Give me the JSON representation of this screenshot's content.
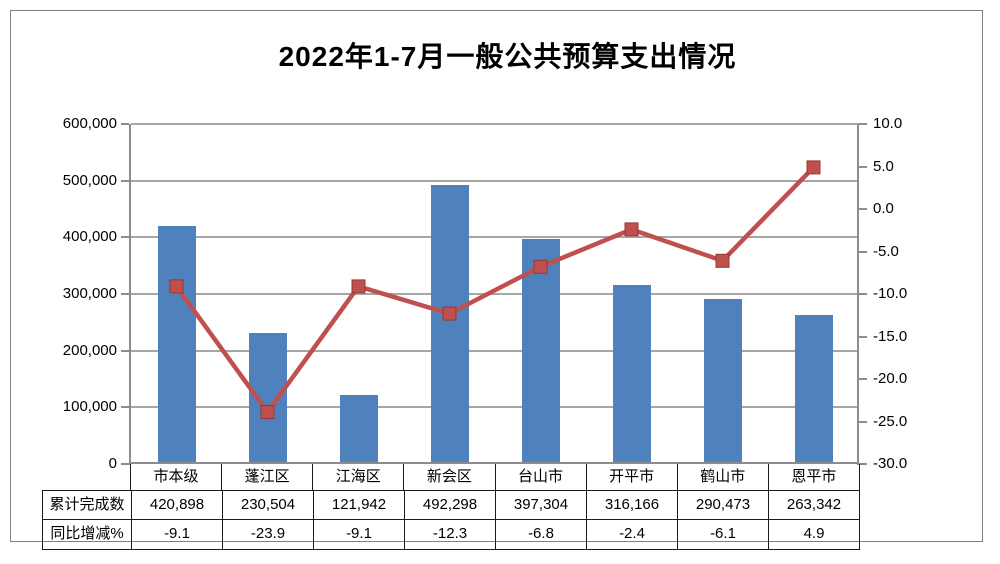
{
  "chart_data": {
    "type": "bar",
    "subtype": "bar-line-combo",
    "title": "2022年1-7月一般公共预算支出情况",
    "categories": [
      "市本级",
      "蓬江区",
      "江海区",
      "新会区",
      "台山市",
      "开平市",
      "鹤山市",
      "恩平市"
    ],
    "series": [
      {
        "name": "累计完成数",
        "type": "bar",
        "axis": "left",
        "values": [
          420898,
          230504,
          121942,
          492298,
          397304,
          316166,
          290473,
          263342
        ]
      },
      {
        "name": "同比增减%",
        "type": "line",
        "axis": "right",
        "values": [
          -9.1,
          -23.9,
          -9.1,
          -12.3,
          -6.8,
          -2.4,
          -6.1,
          4.9
        ]
      }
    ],
    "left_axis": {
      "min": 0,
      "max": 600000,
      "tick_labels": [
        "600,000",
        "500,000",
        "400,000",
        "300,000",
        "200,000",
        "100,000",
        "0"
      ]
    },
    "right_axis": {
      "min": -30,
      "max": 10,
      "tick_labels": [
        "10.0",
        "5.0",
        "0.0",
        "-5.0",
        "-10.0",
        "-15.0",
        "-20.0",
        "-25.0",
        "-30.0"
      ]
    },
    "data_table": {
      "row_labels": [
        "累计完成数",
        "同比增减%"
      ],
      "rows": [
        [
          "420,898",
          "230,504",
          "121,942",
          "492,298",
          "397,304",
          "316,166",
          "290,473",
          "263,342"
        ],
        [
          "-9.1",
          "-23.9",
          "-9.1",
          "-12.3",
          "-6.8",
          "-2.4",
          "-6.1",
          "4.9"
        ]
      ]
    },
    "colors": {
      "bar": "#4F81BD",
      "line": "#C0504D",
      "marker_edge": "#953735",
      "gridline": "#A6A6A6",
      "axis": "#8C8C8C",
      "frame_border": "#808080",
      "table_border": "#1a1a1a"
    },
    "layout": {
      "grid": true,
      "legend": "none",
      "xlabel": "",
      "ylabel": ""
    }
  }
}
